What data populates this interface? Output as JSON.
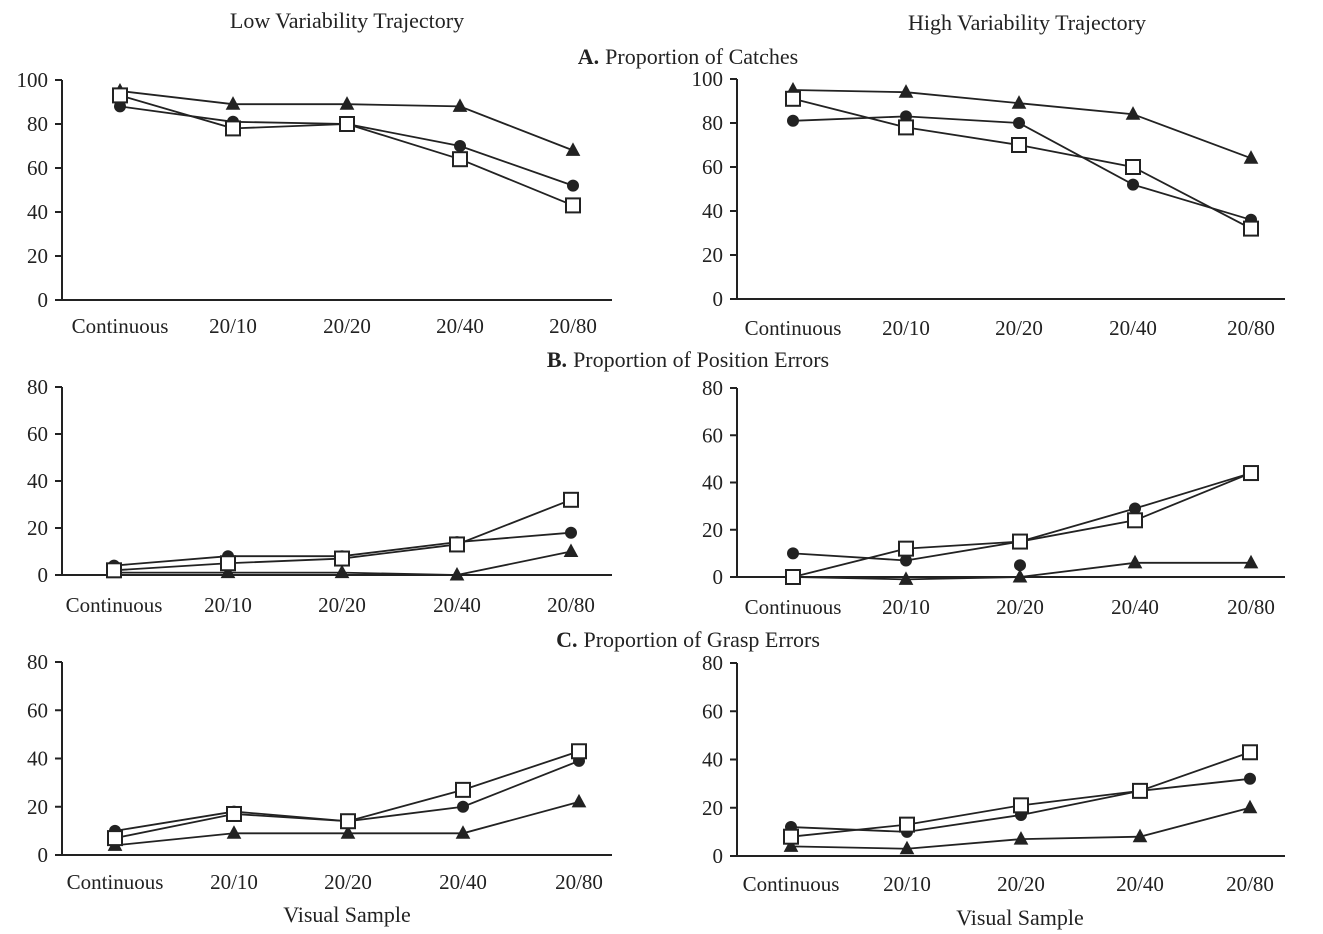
{
  "column_titles": [
    "Low Variability Trajectory",
    "High Variability Trajectory"
  ],
  "row_titles": [
    {
      "letter": "A.",
      "text": "Proportion of Catches"
    },
    {
      "letter": "B.",
      "text": "Proportion of Position Errors"
    },
    {
      "letter": "C.",
      "text": "Proportion of Grasp Errors"
    }
  ],
  "chart_data": [
    {
      "type": "line",
      "row": "A",
      "column": "Low Variability Trajectory",
      "title": "Proportion of Catches",
      "categories": [
        "Continuous",
        "20/10",
        "20/20",
        "20/40",
        "20/80"
      ],
      "ylim": [
        0,
        100
      ],
      "yticks": [
        0,
        20,
        40,
        60,
        80,
        100
      ],
      "xlabel": "",
      "ylabel": "",
      "series": [
        {
          "marker": "triangle-filled",
          "values": [
            95,
            89,
            89,
            88,
            68
          ]
        },
        {
          "marker": "circle-filled",
          "values": [
            88,
            81,
            80,
            70,
            52
          ]
        },
        {
          "marker": "square-open",
          "values": [
            93,
            78,
            80,
            64,
            43
          ]
        }
      ]
    },
    {
      "type": "line",
      "row": "A",
      "column": "High Variability Trajectory",
      "title": "Proportion of Catches",
      "categories": [
        "Continuous",
        "20/10",
        "20/20",
        "20/40",
        "20/80"
      ],
      "ylim": [
        0,
        100
      ],
      "yticks": [
        0,
        20,
        40,
        60,
        80,
        100
      ],
      "xlabel": "",
      "ylabel": "",
      "series": [
        {
          "marker": "triangle-filled",
          "values": [
            95,
            94,
            89,
            84,
            64
          ]
        },
        {
          "marker": "circle-filled",
          "values": [
            81,
            83,
            80,
            52,
            36
          ]
        },
        {
          "marker": "square-open",
          "values": [
            91,
            78,
            70,
            60,
            32
          ]
        }
      ]
    },
    {
      "type": "line",
      "row": "B",
      "column": "Low Variability Trajectory",
      "title": "Proportion of Position Errors",
      "categories": [
        "Continuous",
        "20/10",
        "20/20",
        "20/40",
        "20/80"
      ],
      "ylim": [
        0,
        80
      ],
      "yticks": [
        0,
        20,
        40,
        60,
        80
      ],
      "xlabel": "",
      "ylabel": "",
      "series": [
        {
          "marker": "triangle-filled",
          "values": [
            1,
            1,
            1,
            0,
            10
          ]
        },
        {
          "marker": "circle-filled",
          "values": [
            4,
            8,
            8,
            14,
            18
          ]
        },
        {
          "marker": "square-open",
          "values": [
            2,
            5,
            7,
            13,
            32
          ]
        }
      ]
    },
    {
      "type": "line",
      "row": "B",
      "column": "High Variability Trajectory",
      "title": "Proportion of Position Errors",
      "categories": [
        "Continuous",
        "20/10",
        "20/20",
        "20/40",
        "20/80"
      ],
      "ylim": [
        0,
        80
      ],
      "yticks": [
        0,
        20,
        40,
        60,
        80
      ],
      "xlabel": "",
      "ylabel": "",
      "series": [
        {
          "marker": "triangle-filled",
          "values": [
            0,
            -1,
            0,
            6,
            6
          ]
        },
        {
          "marker": "circle-filled",
          "values": [
            10,
            7,
            15,
            29,
            44
          ]
        },
        {
          "marker": "square-open",
          "values": [
            0,
            12,
            15,
            24,
            44
          ]
        }
      ],
      "extra_points": [
        {
          "marker": "circle-filled",
          "category": "20/20",
          "value": 5
        }
      ]
    },
    {
      "type": "line",
      "row": "C",
      "column": "Low Variability Trajectory",
      "title": "Proportion of Grasp Errors",
      "categories": [
        "Continuous",
        "20/10",
        "20/20",
        "20/40",
        "20/80"
      ],
      "ylim": [
        0,
        80
      ],
      "yticks": [
        0,
        20,
        40,
        60,
        80
      ],
      "xlabel": "Visual Sample",
      "ylabel": "",
      "series": [
        {
          "marker": "triangle-filled",
          "values": [
            4,
            9,
            9,
            9,
            22
          ]
        },
        {
          "marker": "circle-filled",
          "values": [
            10,
            18,
            14,
            20,
            39
          ]
        },
        {
          "marker": "square-open",
          "values": [
            7,
            17,
            14,
            27,
            43
          ]
        }
      ]
    },
    {
      "type": "line",
      "row": "C",
      "column": "High Variability Trajectory",
      "title": "Proportion of Grasp Errors",
      "categories": [
        "Continuous",
        "20/10",
        "20/20",
        "20/40",
        "20/80"
      ],
      "ylim": [
        0,
        80
      ],
      "yticks": [
        0,
        20,
        40,
        60,
        80
      ],
      "xlabel": "Visual Sample",
      "ylabel": "",
      "series": [
        {
          "marker": "triangle-filled",
          "values": [
            4,
            3,
            7,
            8,
            20
          ]
        },
        {
          "marker": "circle-filled",
          "values": [
            12,
            10,
            17,
            27,
            32
          ]
        },
        {
          "marker": "square-open",
          "values": [
            8,
            13,
            21,
            27,
            43
          ]
        }
      ]
    }
  ]
}
